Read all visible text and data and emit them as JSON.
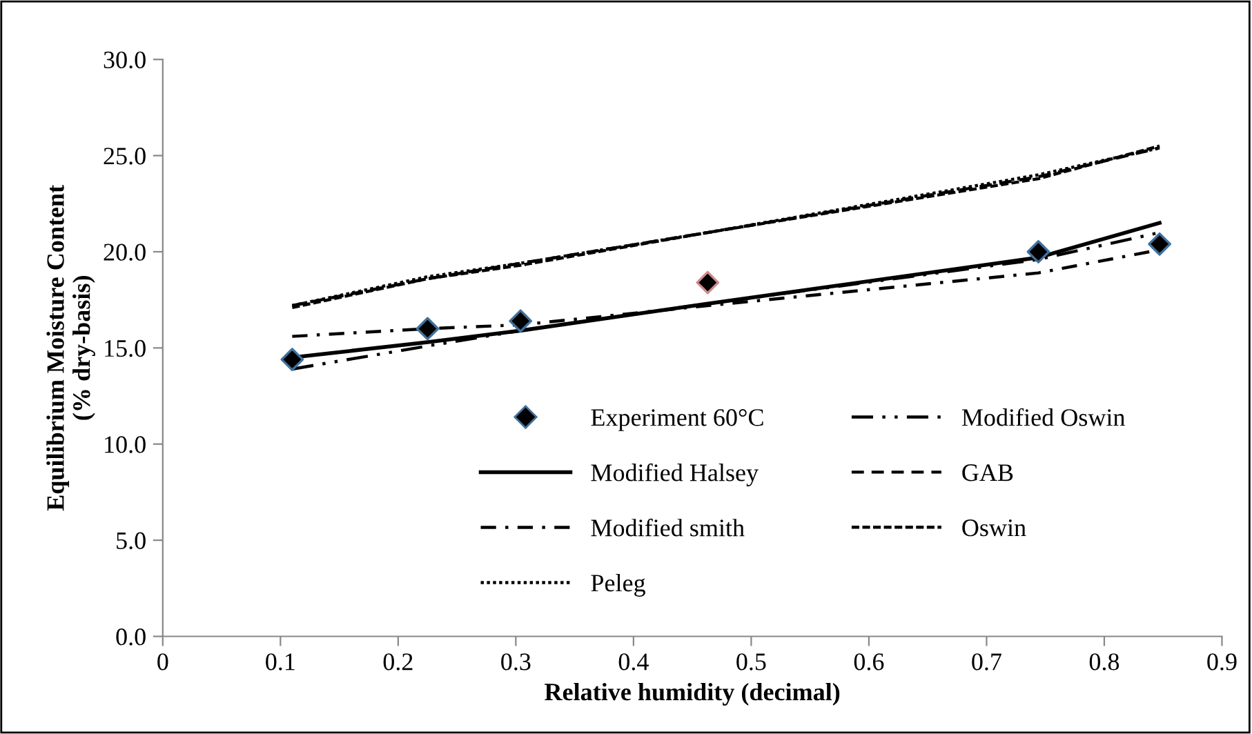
{
  "chart_data": {
    "type": "line",
    "xlabel": "Relative humidity (decimal)",
    "ylabel": "Equilibrium Moisture Content\n(% dry-basis)",
    "xlim": [
      0,
      0.9
    ],
    "xticks": [
      0,
      0.1,
      0.2,
      0.3,
      0.4,
      0.5,
      0.6,
      0.7,
      0.8,
      0.9
    ],
    "ylim": [
      0,
      30
    ],
    "yticks": [
      {
        "value": 0,
        "label": "0.0"
      },
      {
        "value": 5,
        "label": "5.0"
      },
      {
        "value": 10,
        "label": "10.0"
      },
      {
        "value": 15,
        "label": "15.0"
      },
      {
        "value": 20,
        "label": "20.0"
      },
      {
        "value": 25,
        "label": "25.0"
      },
      {
        "value": 30,
        "label": "30.0"
      }
    ],
    "grid": false,
    "legend": "bottom right",
    "x": [
      0.11,
      0.225,
      0.304,
      0.463,
      0.744,
      0.847
    ],
    "series": [
      {
        "name": "Experiment 60°C",
        "type": "scatter",
        "marker": "diamond",
        "color": "#000000",
        "colors": [
          "#41719c",
          "#41719c",
          "#41719c",
          "#d08a8a",
          "#41719c",
          "#41719c"
        ],
        "values": [
          14.4,
          16.0,
          16.4,
          18.4,
          20.0,
          20.4
        ]
      },
      {
        "name": "Modified Oswin",
        "line_style": "dashdotdot",
        "color": "#000000",
        "values": [
          13.9,
          15.1,
          15.9,
          17.3,
          19.6,
          21.0
        ]
      },
      {
        "name": "Modified Halsey",
        "line_style": "solid",
        "color": "#000000",
        "values": [
          14.5,
          15.3,
          15.9,
          17.3,
          19.7,
          21.5
        ]
      },
      {
        "name": "GAB",
        "line_style": "dashed",
        "color": "#000000",
        "values": [
          17.2,
          18.6,
          19.4,
          21.0,
          23.9,
          25.4
        ]
      },
      {
        "name": "Modified smith",
        "line_style": "dashdot",
        "color": "#000000",
        "values": [
          15.6,
          16.0,
          16.2,
          17.2,
          18.9,
          20.1
        ]
      },
      {
        "name": "Oswin",
        "line_style": "shortdash",
        "color": "#000000",
        "values": [
          17.1,
          18.6,
          19.3,
          21.0,
          23.8,
          25.5
        ]
      },
      {
        "name": "Peleg",
        "line_style": "dotted",
        "color": "#000000",
        "values": [
          17.2,
          18.7,
          19.4,
          21.0,
          24.0,
          25.4
        ]
      }
    ]
  }
}
